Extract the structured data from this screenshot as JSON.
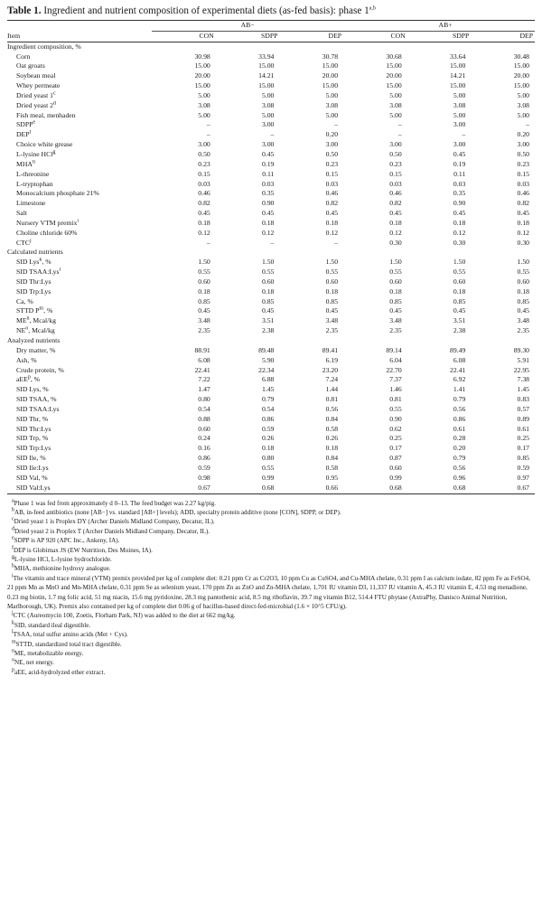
{
  "caption": {
    "label": "Table 1.",
    "text": "Ingredient and nutrient composition of experimental diets (as-fed basis): phase 1",
    "marks": "a,b"
  },
  "header": {
    "group1": "AB−",
    "group2": "AB+",
    "item": "Item",
    "cols": [
      "CON",
      "SDPP",
      "DEP",
      "CON",
      "SDPP",
      "DEP"
    ]
  },
  "sections": [
    {
      "title": "Ingredient composition, %",
      "rows": [
        {
          "label": "Corn",
          "sup": "",
          "values": [
            "30.98",
            "33.94",
            "30.78",
            "30.68",
            "33.64",
            "30.48"
          ]
        },
        {
          "label": "Oat groats",
          "sup": "",
          "values": [
            "15.00",
            "15.00",
            "15.00",
            "15.00",
            "15.00",
            "15.00"
          ]
        },
        {
          "label": "Soybean meal",
          "sup": "",
          "values": [
            "20.00",
            "14.21",
            "20.00",
            "20.00",
            "14.21",
            "20.00"
          ]
        },
        {
          "label": "Whey permeate",
          "sup": "",
          "values": [
            "15.00",
            "15.00",
            "15.00",
            "15.00",
            "15.00",
            "15.00"
          ]
        },
        {
          "label": "Dried yeast 1",
          "sup": "c",
          "values": [
            "5.00",
            "5.00",
            "5.00",
            "5.00",
            "5.00",
            "5.00"
          ]
        },
        {
          "label": "Dried yeast 2",
          "sup": "d",
          "values": [
            "3.08",
            "3.08",
            "3.08",
            "3.08",
            "3.08",
            "3.08"
          ]
        },
        {
          "label": "Fish meal, menhaden",
          "sup": "",
          "values": [
            "5.00",
            "5.00",
            "5.00",
            "5.00",
            "5.00",
            "5.00"
          ]
        },
        {
          "label": "SDPP",
          "sup": "e",
          "values": [
            "–",
            "3.00",
            "–",
            "–",
            "3.00",
            "–"
          ]
        },
        {
          "label": "DEP",
          "sup": "f",
          "values": [
            "–",
            "–",
            "0.20",
            "–",
            "–",
            "0.20"
          ]
        },
        {
          "label": "Choice white grease",
          "sup": "",
          "values": [
            "3.00",
            "3.00",
            "3.00",
            "3.00",
            "3.00",
            "3.00"
          ]
        },
        {
          "label": "L-lysine HCl",
          "sup": "g",
          "values": [
            "0.50",
            "0.45",
            "0.50",
            "0.50",
            "0.45",
            "0.50"
          ]
        },
        {
          "label": "MHA",
          "sup": "h",
          "values": [
            "0.23",
            "0.19",
            "0.23",
            "0.23",
            "0.19",
            "0.23"
          ]
        },
        {
          "label": "L-threonine",
          "sup": "",
          "values": [
            "0.15",
            "0.11",
            "0.15",
            "0.15",
            "0.11",
            "0.15"
          ]
        },
        {
          "label": "L-tryptophan",
          "sup": "",
          "values": [
            "0.03",
            "0.03",
            "0.03",
            "0.03",
            "0.03",
            "0.03"
          ]
        },
        {
          "label": "Monocalcium phosphate 21%",
          "sup": "",
          "values": [
            "0.46",
            "0.35",
            "0.46",
            "0.46",
            "0.35",
            "0.46"
          ]
        },
        {
          "label": "Limestone",
          "sup": "",
          "values": [
            "0.82",
            "0.90",
            "0.82",
            "0.82",
            "0.90",
            "0.82"
          ]
        },
        {
          "label": "Salt",
          "sup": "",
          "values": [
            "0.45",
            "0.45",
            "0.45",
            "0.45",
            "0.45",
            "0.45"
          ]
        },
        {
          "label": "Nursery VTM premix",
          "sup": "i",
          "values": [
            "0.18",
            "0.18",
            "0.18",
            "0.18",
            "0.18",
            "0.18"
          ]
        },
        {
          "label": "Choline chloride 60%",
          "sup": "",
          "values": [
            "0.12",
            "0.12",
            "0.12",
            "0.12",
            "0.12",
            "0.12"
          ]
        },
        {
          "label": "CTC",
          "sup": "j",
          "values": [
            "–",
            "–",
            "–",
            "0.30",
            "0.30",
            "0.30"
          ]
        }
      ]
    },
    {
      "title": "Calculated nutrients",
      "rows": [
        {
          "label": "SID Lys",
          "sup": "k",
          "suffix": ", %",
          "values": [
            "1.50",
            "1.50",
            "1.50",
            "1.50",
            "1.50",
            "1.50"
          ]
        },
        {
          "label": "SID TSAA:Lys",
          "sup": "l",
          "suffix": "",
          "values": [
            "0.55",
            "0.55",
            "0.55",
            "0.55",
            "0.55",
            "0.55"
          ]
        },
        {
          "label": "SID Thr:Lys",
          "sup": "",
          "suffix": "",
          "values": [
            "0.60",
            "0.60",
            "0.60",
            "0.60",
            "0.60",
            "0.60"
          ]
        },
        {
          "label": "SID Trp:Lys",
          "sup": "",
          "suffix": "",
          "values": [
            "0.18",
            "0.18",
            "0.18",
            "0.18",
            "0.18",
            "0.18"
          ]
        },
        {
          "label": "Ca, %",
          "sup": "",
          "suffix": "",
          "values": [
            "0.85",
            "0.85",
            "0.85",
            "0.85",
            "0.85",
            "0.85"
          ]
        },
        {
          "label": "STTD P",
          "sup": "m",
          "suffix": ", %",
          "values": [
            "0.45",
            "0.45",
            "0.45",
            "0.45",
            "0.45",
            "0.45"
          ]
        },
        {
          "label": "ME",
          "sup": "n",
          "suffix": ", Mcal/kg",
          "values": [
            "3.48",
            "3.51",
            "3.48",
            "3.48",
            "3.51",
            "3.48"
          ]
        },
        {
          "label": "NE",
          "sup": "o",
          "suffix": ", Mcal/kg",
          "values": [
            "2.35",
            "2.38",
            "2.35",
            "2.35",
            "2.38",
            "2.35"
          ]
        }
      ]
    },
    {
      "title": "Analyzed nutrients",
      "rows": [
        {
          "label": "Dry matter, %",
          "sup": "",
          "suffix": "",
          "values": [
            "88.91",
            "89.48",
            "89.41",
            "89.14",
            "89.49",
            "89.30"
          ]
        },
        {
          "label": "Ash, %",
          "sup": "",
          "suffix": "",
          "values": [
            "6.08",
            "5.90",
            "6.19",
            "6.04",
            "6.08",
            "5.91"
          ]
        },
        {
          "label": "Crude protein, %",
          "sup": "",
          "suffix": "",
          "values": [
            "22.41",
            "22.34",
            "23.20",
            "22.70",
            "22.41",
            "22.95"
          ]
        },
        {
          "label": "aEE",
          "sup": "p",
          "suffix": ", %",
          "values": [
            "7.22",
            "6.88",
            "7.24",
            "7.37",
            "6.92",
            "7.38"
          ]
        },
        {
          "label": "SID Lys, %",
          "sup": "",
          "suffix": "",
          "values": [
            "1.47",
            "1.45",
            "1.44",
            "1.46",
            "1.41",
            "1.45"
          ]
        },
        {
          "label": "SID TSAA, %",
          "sup": "",
          "suffix": "",
          "values": [
            "0.80",
            "0.79",
            "0.81",
            "0.81",
            "0.79",
            "0.83"
          ]
        },
        {
          "label": "SID TSAA:Lys",
          "sup": "",
          "suffix": "",
          "values": [
            "0.54",
            "0.54",
            "0.56",
            "0.55",
            "0.56",
            "0.57"
          ]
        },
        {
          "label": "SID Thr, %",
          "sup": "",
          "suffix": "",
          "values": [
            "0.88",
            "0.86",
            "0.84",
            "0.90",
            "0.86",
            "0.89"
          ]
        },
        {
          "label": "SID Thr:Lys",
          "sup": "",
          "suffix": "",
          "values": [
            "0.60",
            "0.59",
            "0.58",
            "0.62",
            "0.61",
            "0.61"
          ]
        },
        {
          "label": "SID Trp, %",
          "sup": "",
          "suffix": "",
          "values": [
            "0.24",
            "0.26",
            "0.26",
            "0.25",
            "0.28",
            "0.25"
          ]
        },
        {
          "label": "SID Trp:Lys",
          "sup": "",
          "suffix": "",
          "values": [
            "0.16",
            "0.18",
            "0.18",
            "0.17",
            "0.20",
            "0.17"
          ]
        },
        {
          "label": "SID Ile, %",
          "sup": "",
          "suffix": "",
          "values": [
            "0.86",
            "0.80",
            "0.84",
            "0.87",
            "0.79",
            "0.85"
          ]
        },
        {
          "label": "SID Ile:Lys",
          "sup": "",
          "suffix": "",
          "values": [
            "0.59",
            "0.55",
            "0.58",
            "0.60",
            "0.56",
            "0.59"
          ]
        },
        {
          "label": "SID Val, %",
          "sup": "",
          "suffix": "",
          "values": [
            "0.98",
            "0.99",
            "0.95",
            "0.99",
            "0.96",
            "0.97"
          ]
        },
        {
          "label": "SID Val:Lys",
          "sup": "",
          "suffix": "",
          "values": [
            "0.67",
            "0.68",
            "0.66",
            "0.68",
            "0.68",
            "0.67"
          ]
        }
      ]
    }
  ],
  "footnotes": [
    {
      "mark": "a",
      "text": "Phase 1 was fed from approximately d 0–13. The feed budget was 2.27 kg/pig."
    },
    {
      "mark": "b",
      "text": "AB, in-feed antibiotics (none [AB−] vs. standard [AB+] levels); ADD, specialty protein additive (none [CON], SDPP, or DEP)."
    },
    {
      "mark": "c",
      "text": "Dried yeast 1 is Proplex DY (Archer Daniels Midland Company, Decatur, IL)."
    },
    {
      "mark": "d",
      "text": "Dried yeast 2 is Proplex T (Archer Daniels Midland Company, Decatur, IL)."
    },
    {
      "mark": "e",
      "text": "SDPP is AP 920 (APC Inc., Ankeny, IA)."
    },
    {
      "mark": "f",
      "text": "DEP is Globimax JS (EW Nutrition, Des Moines, IA)."
    },
    {
      "mark": "g",
      "text": "L-lysine HCl, L-lysine hydrochloride."
    },
    {
      "mark": "h",
      "text": "MHA, methionine hydroxy analogue."
    },
    {
      "mark": "i",
      "text": "The vitamin and trace mineral (VTM) premix provided per kg of complete diet: 0.21 ppm Cr as Cr2O3, 10 ppm Cu as CuSO4, and Cu-MHA chelate, 0.31 ppm I as calcium iodate, 82 ppm Fe as FeSO4, 21 ppm Mn as MnO and Mn-MHA chelate, 0.31 ppm Se as selenium yeast, 170 ppm Zn as ZnO and Zn-MHA chelate, 1,701 IU vitamin D3, 11,337 IU vitamin A, 45.3 IU vitamin E, 4.53 mg menadione, 0.23 mg biotin, 1.7 mg folic acid, 51 mg niacin, 15.6 mg pyridoxine, 28.3 mg pantothenic acid, 8.5 mg riboflavin, 39.7 mg vitamin B12, 514.4 FTU phytase (AxtraPhy, Danisco Animal Nutrition, Marlborough, UK). Premix also contained per kg of complete diet 0.06 g of bacillus-based direct-fed-microbial (1.6 × 10^5 CFU/g)."
    },
    {
      "mark": "j",
      "text": "CTC (Aureomycin 100, Zoetis, Florham Park, NJ) was added to the diet at 662 mg/kg."
    },
    {
      "mark": "k",
      "text": "SID, standard ileal digestible."
    },
    {
      "mark": "l",
      "text": "TSAA, total sulfur amino acids (Met + Cys)."
    },
    {
      "mark": "m",
      "text": "STTD, standardized total tract digestible."
    },
    {
      "mark": "n",
      "text": "ME, metabolizable energy."
    },
    {
      "mark": "o",
      "text": "NE, net energy."
    },
    {
      "mark": "p",
      "text": "aEE, acid-hydrolyzed ether extract."
    }
  ]
}
